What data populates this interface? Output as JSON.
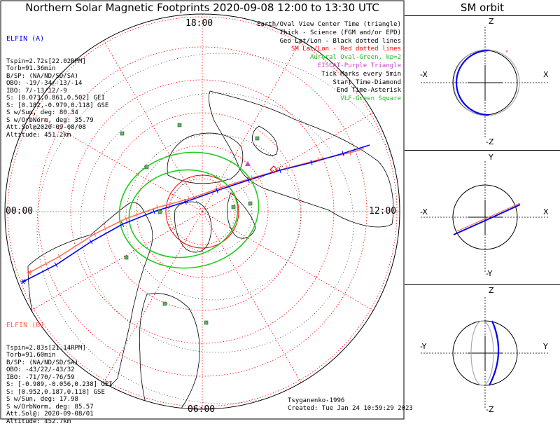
{
  "title": "Northern Solar Magnetic Footprints 2020-09-08 12:00 to 13:30 UTC",
  "sm_title": "SM orbit",
  "map_labels": {
    "top": "18:00",
    "left": "00:00",
    "right": "12:00",
    "bottom": "06:00"
  },
  "elfin_a": {
    "name": "ELFIN (A)",
    "color": "#0000ff",
    "lines": [
      "Tspin=2.72s[22.02RPM]",
      "Torb=91.36min",
      "B/SP: (NA/ND/SD/SA)",
      "OBO: -19/-34/-13/-14",
      "IBO: 7/-13/12/-9",
      "S: [0.073,0.861,0.502] GEI",
      "S: [0.182,-0.979,0.118] GSE",
      "S w/Sun, deg: 80.34",
      "S w/OrbNorm, deg: 35.79",
      "Att.Sol@2020-09-08/08",
      "Altitude: 451.2km"
    ]
  },
  "elfin_b": {
    "name": "ELFIN (B)",
    "color": "#ff6a4d",
    "lines": [
      "Tspin=2.83s[21.14RPM]",
      "Torb=91.60min",
      "B/SP: (NA/ND/SD/SA)",
      "OBO: -43/22/-43/32",
      "IBO: -71/70/-76/59",
      "S: [-0.989,-0.056,0.238] GEI",
      "S: [0.952,0.187,0.118] GSE",
      "S w/Sun, deg: 17.98",
      "S w/OrbNorm, deg: 85.57",
      "Att.Sol@: 2020-09-08/01",
      "Altitude: 452.7km"
    ]
  },
  "legend": [
    {
      "text": "Earth/Oval View Center Time (triangle)",
      "color": "#000000"
    },
    {
      "text": "Thick - Science (FGM and/or EPD)",
      "color": "#000000"
    },
    {
      "text": "Geo Lat/Lon - Black dotted lines",
      "color": "#000000"
    },
    {
      "text": "SM Lat/Lon - Red dotted lines",
      "color": "#ff0000"
    },
    {
      "text": "Auroral Oval-Green, kp=2",
      "color": "#22bb22"
    },
    {
      "text": "EISCAT-Purple Triangle",
      "color": "#cc44cc"
    },
    {
      "text": "Tick Marks every 5min",
      "color": "#000000"
    },
    {
      "text": "Start Time-Diamond",
      "color": "#000000"
    },
    {
      "text": "End Time-Asterisk",
      "color": "#000000"
    },
    {
      "text": "VLF-Green Square",
      "color": "#22bb22"
    }
  ],
  "credit": [
    "Tsyganenko-1996",
    "Created: Tue Jan 24 10:59:29 2023"
  ],
  "sm_panels": [
    {
      "top": "Z",
      "bottom": "-Z",
      "left": "-X",
      "right": "X"
    },
    {
      "top": "Y",
      "bottom": "-Y",
      "left": "-X",
      "right": "X"
    },
    {
      "top": "Z",
      "bottom": "-Z",
      "left": "-Y",
      "right": "Y"
    }
  ],
  "colors": {
    "elfin_a": "#0000ff",
    "elfin_b": "#ff6a4d",
    "oval": "#22cc22",
    "sm_grid": "#ff0000",
    "geo_grid": "#000000",
    "eiscat": "#cc44cc",
    "vlf": "#44aa44"
  }
}
